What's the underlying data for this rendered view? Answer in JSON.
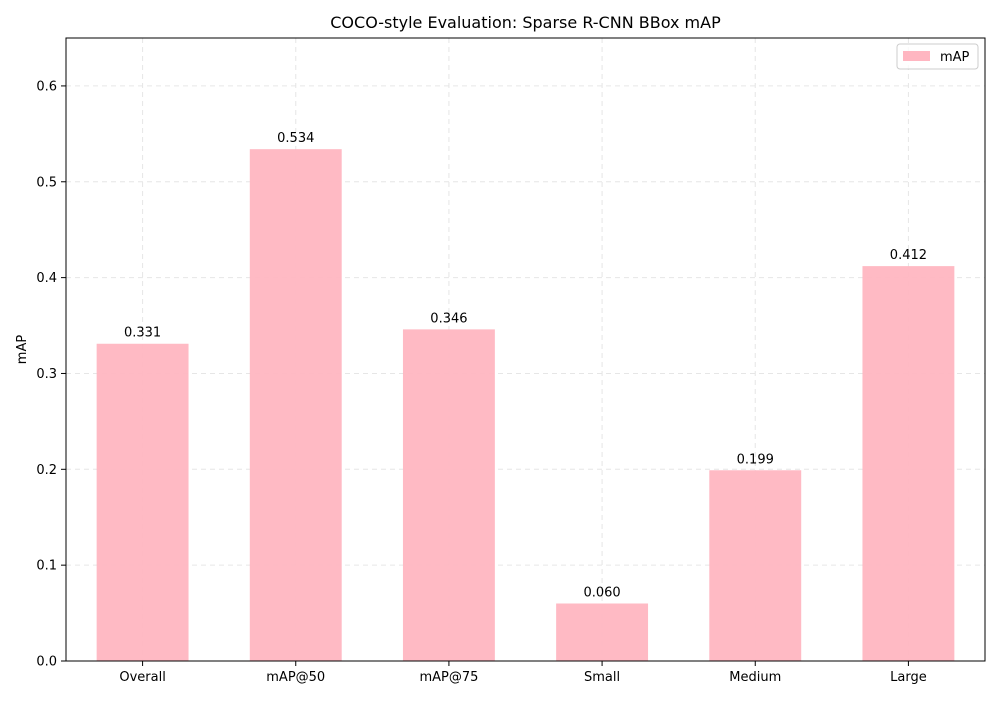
{
  "chart_data": {
    "type": "bar",
    "title": "COCO-style Evaluation: Sparse R-CNN BBox mAP",
    "xlabel": "",
    "ylabel": "mAP",
    "categories": [
      "Overall",
      "mAP@50",
      "mAP@75",
      "Small",
      "Medium",
      "Large"
    ],
    "series": [
      {
        "name": "mAP",
        "values": [
          0.331,
          0.534,
          0.346,
          0.06,
          0.199,
          0.412
        ],
        "value_labels": [
          "0.331",
          "0.534",
          "0.346",
          "0.060",
          "0.199",
          "0.412"
        ],
        "color": "#ffb6c1"
      }
    ],
    "ylim": [
      0,
      0.65
    ],
    "yticks": [
      0.0,
      0.1,
      0.2,
      0.3,
      0.4,
      0.5,
      0.6
    ],
    "ytick_labels": [
      "0.0",
      "0.1",
      "0.2",
      "0.3",
      "0.4",
      "0.5",
      "0.6"
    ],
    "grid": true,
    "legend_position": "top-right"
  }
}
